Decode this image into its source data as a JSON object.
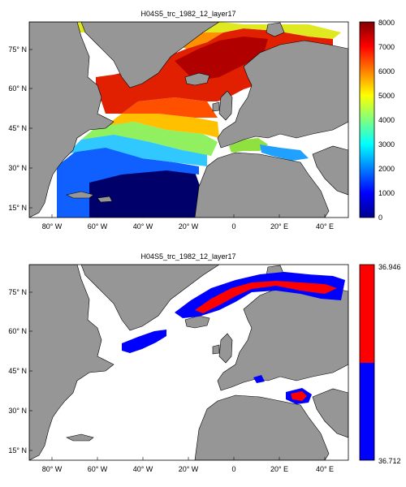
{
  "chart_data": [
    {
      "type": "heatmap",
      "title": "H04S5_trc_1982_12_layer17",
      "x_ticks": [
        "80° W",
        "60° W",
        "40° W",
        "20° W",
        "0",
        "20° E",
        "40° E"
      ],
      "y_ticks": [
        "75° N",
        "60° N",
        "45° N",
        "30° N",
        "15° N"
      ],
      "x_range": [
        -90,
        50
      ],
      "y_range": [
        10,
        85
      ],
      "colorbar": {
        "range": [
          0,
          8000
        ],
        "ticks": [
          "0",
          "1000",
          "2000",
          "3000",
          "4000",
          "5000",
          "6000",
          "7000",
          "8000"
        ],
        "colormap": "jet"
      },
      "notes": "Values highest (~6000-7000) in the Nordic Seas and northern Atlantic, decreasing southward to near 0 in the subtropical Atlantic around 15-25 N; Mediterranean ~1000-1500."
    },
    {
      "type": "heatmap",
      "title": "H04S5_trc_1982_12_layer17",
      "x_ticks": [
        "80° W",
        "60° W",
        "40° W",
        "20° W",
        "0",
        "20° E",
        "40° E"
      ],
      "y_ticks": [
        "75° N",
        "60° N",
        "45° N",
        "30° N",
        "15° N"
      ],
      "x_range": [
        -90,
        50
      ],
      "y_range": [
        10,
        85
      ],
      "colorbar": {
        "range": [
          36.712,
          36.946
        ],
        "ticks": [
          "36.946",
          "36.712"
        ],
        "colors": [
          "#0000ff",
          "#ff0000"
        ]
      },
      "notes": "Two-class field: red/blue cells along Barents and Nordic seas margin, small blue patch near 50 W 52 N, and red/blue patch in the eastern Mediterranean."
    }
  ],
  "colors": {
    "land": "#969696",
    "nan": "#ffffff",
    "coast": "#000000"
  }
}
